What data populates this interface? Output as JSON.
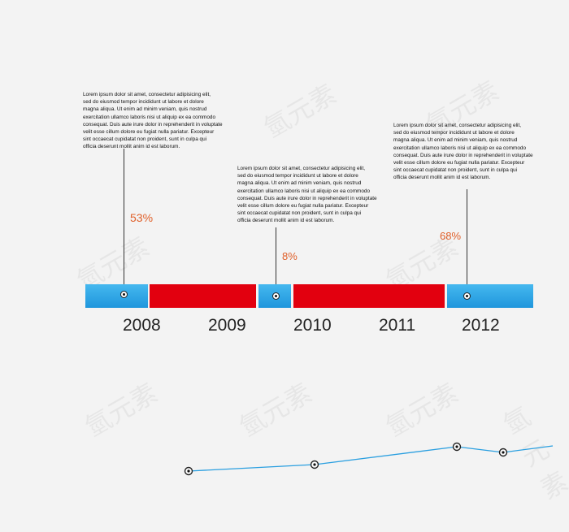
{
  "notes": [
    "Lorem ipsum dolor sit amet, consectetur adipisicing elit,\nsed do eiusmod tempor incididunt ut labore et dolore\nmagna aliqua. Ut enim ad minim veniam, quis  nostrud\nexercitation ullamco laboris nisi ut aliquip ex ea commodo\nconsequat. Duis aute irure dolor in reprehenderit in voluptate\nvelit esse cillum dolore eu fugiat nulla pariatur. Excepteur\nsint occaecat cupidatat non proident, sunt in culpa qui\nofficia deserunt mollit anim id est laborum.",
    "Lorem ipsum dolor sit amet, consectetur adipisicing elit,\nsed do eiusmod tempor incididunt ut labore et dolore\nmagna aliqua. Ut enim ad minim veniam, quis  nostrud\nexercitation ullamco laboris nisi ut aliquip ex ea commodo\nconsequat. Duis aute irure dolor in reprehenderit in voluptate\nvelit esse cillum dolore eu fugiat nulla pariatur. Excepteur\nsint occaecat cupidatat non proident, sunt in culpa qui\nofficia deserunt mollit anim id est laborum.",
    "Lorem ipsum dolor sit amet, consectetur adipisicing elit,\nsed do eiusmod tempor incididunt ut labore et dolore\nmagna aliqua. Ut enim ad minim veniam, quis  nostrud\nexercitation ullamco laboris nisi ut aliquip ex ea commodo\nconsequat. Duis aute irure dolor in reprehenderit in voluptate\nvelit esse cillum dolore eu fugiat nulla pariatur. Excepteur\nsint occaecat cupidatat non proident, sunt in culpa qui\nofficia deserunt mollit anim id est laborum."
  ],
  "percentages": [
    "53%",
    "8%",
    "68%"
  ],
  "years": [
    "2008",
    "2009",
    "2010",
    "2011",
    "2012"
  ],
  "timeline_segments": [
    {
      "color": "blue"
    },
    {
      "color": "red"
    },
    {
      "color": "blue"
    },
    {
      "color": "red"
    },
    {
      "color": "blue"
    }
  ],
  "watermark": "氫元素",
  "colors": {
    "blue": "#2aa6e6",
    "red": "#e2000f",
    "percent": "#e0602a",
    "line": "#2a9fe0",
    "background": "#f3f3f3"
  }
}
